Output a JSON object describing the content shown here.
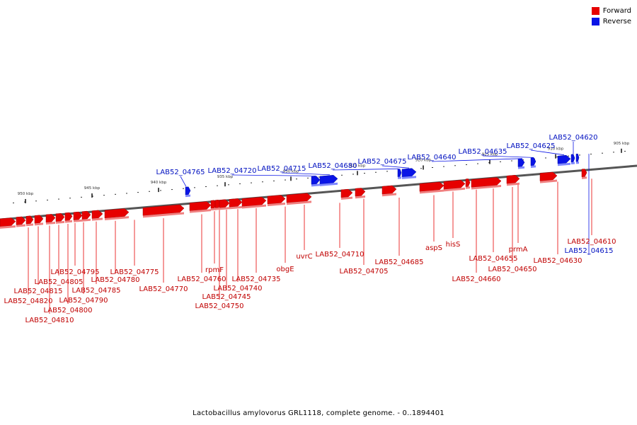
{
  "legend": {
    "forward_label": "Forward",
    "reverse_label": "Reverse",
    "forward_color": "#e60000",
    "reverse_color": "#0a14e6"
  },
  "caption": "Lactobacillus amylovorus GRL1118, complete genome. - 0..1894401",
  "ruler": [
    "950 kbp",
    "945 kbp",
    "940 kbp",
    "935 kbp",
    "930 kbp",
    "925 kbp",
    "920 kbp",
    "915 kbp",
    "910 kbp",
    "905 kbp"
  ],
  "genes": [
    {
      "name": "LAB52_04820",
      "strand": "forward"
    },
    {
      "name": "LAB52_04815",
      "strand": "forward"
    },
    {
      "name": "LAB52_04810",
      "strand": "forward"
    },
    {
      "name": "LAB52_04805",
      "strand": "forward"
    },
    {
      "name": "LAB52_04800",
      "strand": "forward"
    },
    {
      "name": "LAB52_04795",
      "strand": "forward"
    },
    {
      "name": "LAB52_04790",
      "strand": "forward"
    },
    {
      "name": "LAB52_04785",
      "strand": "forward"
    },
    {
      "name": "LAB52_04780",
      "strand": "forward"
    },
    {
      "name": "LAB52_04775",
      "strand": "forward"
    },
    {
      "name": "LAB52_04770",
      "strand": "forward"
    },
    {
      "name": "LAB52_04765",
      "strand": "reverse"
    },
    {
      "name": "LAB52_04760",
      "strand": "forward"
    },
    {
      "name": "rpmF",
      "strand": "forward"
    },
    {
      "name": "LAB52_04750",
      "strand": "forward"
    },
    {
      "name": "LAB52_04745",
      "strand": "forward"
    },
    {
      "name": "LAB52_04740",
      "strand": "forward"
    },
    {
      "name": "LAB52_04735",
      "strand": "forward"
    },
    {
      "name": "obgE",
      "strand": "forward"
    },
    {
      "name": "uvrC",
      "strand": "forward"
    },
    {
      "name": "LAB52_04720",
      "strand": "reverse"
    },
    {
      "name": "LAB52_04715",
      "strand": "reverse"
    },
    {
      "name": "LAB52_04710",
      "strand": "forward"
    },
    {
      "name": "LAB52_04705",
      "strand": "forward"
    },
    {
      "name": "LAB52_04680",
      "strand": "reverse"
    },
    {
      "name": "LAB52_04685",
      "strand": "forward"
    },
    {
      "name": "LAB52_04675",
      "strand": "reverse"
    },
    {
      "name": "aspS",
      "strand": "forward"
    },
    {
      "name": "hisS",
      "strand": "forward"
    },
    {
      "name": "LAB52_04640",
      "strand": "reverse"
    },
    {
      "name": "LAB52_04660",
      "strand": "forward"
    },
    {
      "name": "LAB52_04655",
      "strand": "forward"
    },
    {
      "name": "LAB52_04650",
      "strand": "forward"
    },
    {
      "name": "prmA",
      "strand": "forward"
    },
    {
      "name": "LAB52_04635",
      "strand": "reverse"
    },
    {
      "name": "LAB52_04630",
      "strand": "forward"
    },
    {
      "name": "LAB52_04625",
      "strand": "reverse"
    },
    {
      "name": "LAB52_04620",
      "strand": "reverse"
    },
    {
      "name": "LAB52_04615",
      "strand": "reverse"
    },
    {
      "name": "LAB52_04610",
      "strand": "forward"
    }
  ]
}
